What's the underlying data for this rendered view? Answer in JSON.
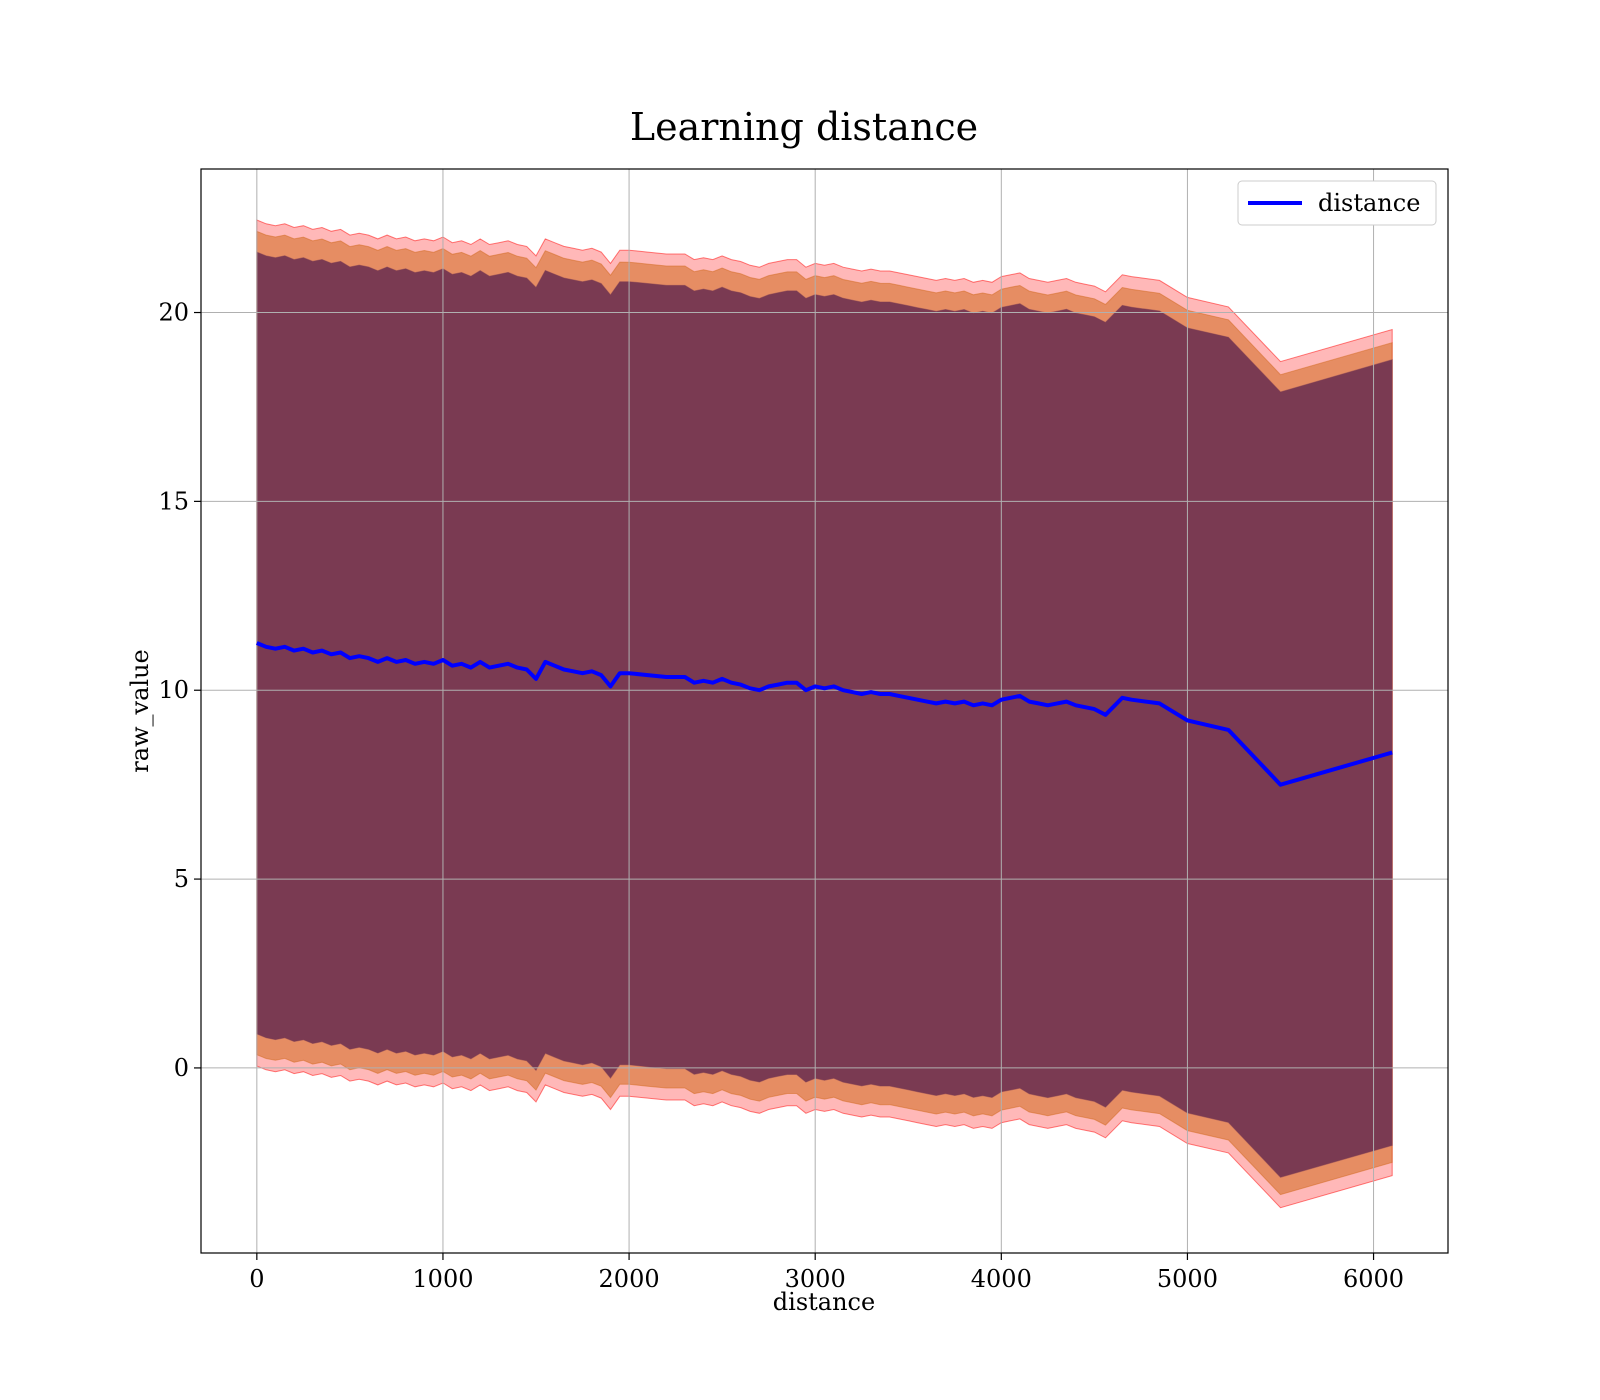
{
  "chart_data": {
    "type": "line",
    "title": "Learning distance",
    "xlabel": "distance",
    "ylabel": "raw_value",
    "xlim": [
      -300,
      6400
    ],
    "ylim": [
      -4.9,
      23.8
    ],
    "xticks": [
      0,
      1000,
      2000,
      3000,
      4000,
      5000,
      6000
    ],
    "yticks": [
      0,
      5,
      10,
      15,
      20
    ],
    "grid": true,
    "legend": {
      "position": "top-right",
      "entries": [
        "distance"
      ]
    },
    "colors": {
      "line": "#0000ff",
      "band_outer": "#ff0000",
      "band_middle": "#d2691e",
      "band_inner": "#7a3a52"
    },
    "series": [
      {
        "name": "distance",
        "x": [
          0,
          50,
          100,
          150,
          200,
          250,
          300,
          350,
          400,
          450,
          500,
          550,
          600,
          650,
          700,
          750,
          800,
          850,
          900,
          950,
          1000,
          1050,
          1100,
          1150,
          1200,
          1250,
          1300,
          1350,
          1400,
          1450,
          1500,
          1550,
          1600,
          1650,
          1700,
          1750,
          1800,
          1850,
          1900,
          1950,
          2000,
          2100,
          2200,
          2300,
          2350,
          2400,
          2450,
          2500,
          2550,
          2600,
          2650,
          2700,
          2750,
          2800,
          2850,
          2900,
          2950,
          3000,
          3050,
          3100,
          3150,
          3200,
          3250,
          3300,
          3350,
          3400,
          3450,
          3500,
          3550,
          3600,
          3650,
          3700,
          3750,
          3800,
          3850,
          3900,
          3950,
          4000,
          4050,
          4100,
          4150,
          4200,
          4250,
          4300,
          4350,
          4400,
          4450,
          4500,
          4560,
          4650,
          4700,
          4850,
          5000,
          5220,
          5500,
          6100
        ],
        "values": [
          11.25,
          11.15,
          11.1,
          11.15,
          11.05,
          11.1,
          11.0,
          11.05,
          10.95,
          11.0,
          10.85,
          10.9,
          10.85,
          10.75,
          10.85,
          10.75,
          10.8,
          10.7,
          10.75,
          10.7,
          10.8,
          10.65,
          10.7,
          10.6,
          10.75,
          10.6,
          10.65,
          10.7,
          10.6,
          10.55,
          10.3,
          10.75,
          10.65,
          10.55,
          10.5,
          10.45,
          10.5,
          10.4,
          10.1,
          10.45,
          10.45,
          10.4,
          10.35,
          10.35,
          10.2,
          10.25,
          10.2,
          10.3,
          10.2,
          10.15,
          10.05,
          10.0,
          10.1,
          10.15,
          10.2,
          10.2,
          10.0,
          10.1,
          10.05,
          10.1,
          10.0,
          9.95,
          9.9,
          9.95,
          9.9,
          9.9,
          9.85,
          9.8,
          9.75,
          9.7,
          9.65,
          9.7,
          9.65,
          9.7,
          9.6,
          9.65,
          9.6,
          9.75,
          9.8,
          9.85,
          9.7,
          9.65,
          9.6,
          9.65,
          9.7,
          9.6,
          9.55,
          9.5,
          9.35,
          9.8,
          9.75,
          9.65,
          9.2,
          8.95,
          7.5,
          8.35
        ]
      }
    ],
    "bands": [
      {
        "name": "outer",
        "half_width_start": 11.2,
        "half_width_end": 11.2
      },
      {
        "name": "middle",
        "half_width_start": 10.9,
        "half_width_end": 10.85
      },
      {
        "name": "inner",
        "half_width_start": 10.35,
        "half_width_end": 10.4
      }
    ]
  }
}
